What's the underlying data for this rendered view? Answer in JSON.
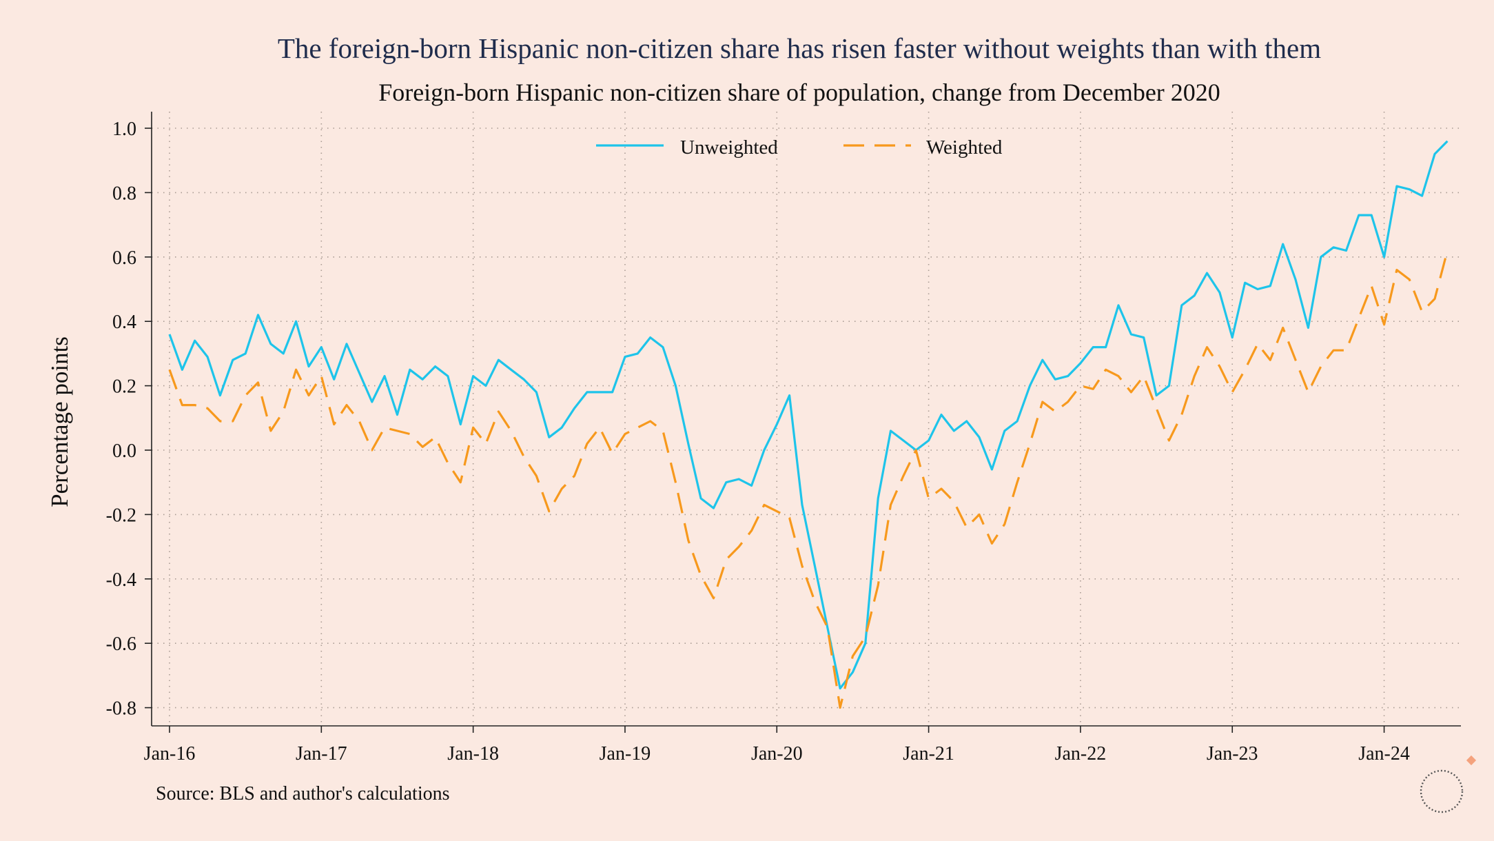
{
  "colors": {
    "background": "#fbe9e1",
    "title": "#1f2c4c",
    "unweighted": "#1ec4ea",
    "weighted": "#f7991d",
    "logo_accent": "#f4a27d"
  },
  "chart_data": {
    "type": "line",
    "title": "The foreign-born Hispanic non-citizen share has risen faster without weights than with them",
    "subtitle": "Foreign-born Hispanic non-citizen share of population, change from December 2020",
    "ylabel": "Percentage points",
    "xlabel": "",
    "source": "Source: BLS and author's calculations",
    "ylim": [
      -0.86,
      1.04
    ],
    "yticks": [
      {
        "value": 1.0,
        "label": "1.0"
      },
      {
        "value": 0.8,
        "label": "0.8"
      },
      {
        "value": 0.6,
        "label": "0.6"
      },
      {
        "value": 0.4,
        "label": "0.4"
      },
      {
        "value": 0.2,
        "label": "0.2"
      },
      {
        "value": 0.0,
        "label": "0.0"
      },
      {
        "value": -0.2,
        "label": "-0.2"
      },
      {
        "value": -0.4,
        "label": "-0.4"
      },
      {
        "value": -0.6,
        "label": "-0.6"
      },
      {
        "value": -0.8,
        "label": "-0.8"
      }
    ],
    "x_start": "Jan-16",
    "xticks": [
      {
        "month_index": 0,
        "label": "Jan-16"
      },
      {
        "month_index": 12,
        "label": "Jan-17"
      },
      {
        "month_index": 24,
        "label": "Jan-18"
      },
      {
        "month_index": 36,
        "label": "Jan-19"
      },
      {
        "month_index": 48,
        "label": "Jan-20"
      },
      {
        "month_index": 60,
        "label": "Jan-21"
      },
      {
        "month_index": 72,
        "label": "Jan-22"
      },
      {
        "month_index": 84,
        "label": "Jan-23"
      },
      {
        "month_index": 96,
        "label": "Jan-24"
      }
    ],
    "grid": true,
    "legend_position": "top-center",
    "series": [
      {
        "name": "Unweighted",
        "color": "#1ec4ea",
        "dash": "solid",
        "values": [
          0.36,
          0.25,
          0.34,
          0.29,
          0.17,
          0.28,
          0.3,
          0.42,
          0.33,
          0.3,
          0.4,
          0.26,
          0.32,
          0.22,
          0.33,
          0.24,
          0.15,
          0.23,
          0.11,
          0.25,
          0.22,
          0.26,
          0.23,
          0.08,
          0.23,
          0.2,
          0.28,
          0.25,
          0.22,
          0.18,
          0.04,
          0.07,
          0.13,
          0.18,
          0.18,
          0.18,
          0.29,
          0.3,
          0.35,
          0.32,
          0.2,
          0.02,
          -0.15,
          -0.18,
          -0.1,
          -0.09,
          -0.11,
          0.0,
          0.08,
          0.17,
          -0.17,
          -0.36,
          -0.55,
          -0.74,
          -0.69,
          -0.6,
          -0.15,
          0.06,
          0.03,
          0.0,
          0.03,
          0.11,
          0.06,
          0.09,
          0.04,
          -0.06,
          0.06,
          0.09,
          0.2,
          0.28,
          0.22,
          0.23,
          0.27,
          0.32,
          0.32,
          0.45,
          0.36,
          0.35,
          0.17,
          0.2,
          0.45,
          0.48,
          0.55,
          0.49,
          0.35,
          0.52,
          0.5,
          0.51,
          0.64,
          0.53,
          0.38,
          0.6,
          0.63,
          0.62,
          0.73,
          0.73,
          0.6,
          0.82,
          0.81,
          0.79,
          0.92,
          0.96
        ]
      },
      {
        "name": "Weighted",
        "color": "#f7991d",
        "dash": "dashed",
        "values": [
          0.25,
          0.14,
          0.14,
          0.13,
          0.09,
          0.09,
          0.17,
          0.21,
          0.06,
          0.12,
          0.25,
          0.17,
          0.23,
          0.08,
          0.14,
          0.09,
          0.0,
          0.07,
          0.06,
          0.05,
          0.01,
          0.04,
          -0.04,
          -0.1,
          0.07,
          0.02,
          0.12,
          0.06,
          -0.02,
          -0.08,
          -0.19,
          -0.12,
          -0.08,
          0.02,
          0.07,
          -0.01,
          0.05,
          0.07,
          0.09,
          0.06,
          -0.1,
          -0.28,
          -0.39,
          -0.46,
          -0.34,
          -0.3,
          -0.25,
          -0.17,
          -0.19,
          -0.21,
          -0.36,
          -0.47,
          -0.55,
          -0.8,
          -0.64,
          -0.58,
          -0.42,
          -0.17,
          -0.08,
          0.0,
          -0.15,
          -0.12,
          -0.16,
          -0.24,
          -0.2,
          -0.29,
          -0.23,
          -0.1,
          0.02,
          0.15,
          0.12,
          0.15,
          0.2,
          0.19,
          0.25,
          0.23,
          0.18,
          0.23,
          0.13,
          0.03,
          0.11,
          0.23,
          0.32,
          0.26,
          0.18,
          0.25,
          0.33,
          0.28,
          0.38,
          0.28,
          0.18,
          0.26,
          0.31,
          0.31,
          0.41,
          0.51,
          0.39,
          0.56,
          0.53,
          0.43,
          0.47,
          0.62
        ]
      }
    ]
  }
}
